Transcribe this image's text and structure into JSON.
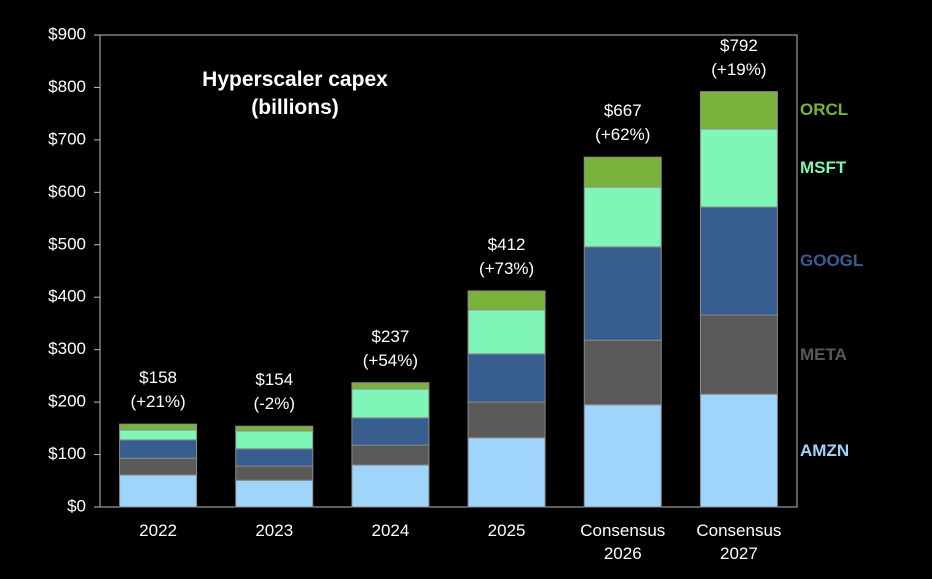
{
  "chart_data": {
    "type": "stacked_bar",
    "title": "Hyperscaler capex",
    "subtitle": "(billions)",
    "categories": [
      "2022",
      "2023",
      "2024",
      "2025",
      "Consensus 2026",
      "Consensus 2027"
    ],
    "series": [
      {
        "name": "AMZN",
        "color": "#9fd5fb",
        "values": [
          61,
          51,
          80,
          132,
          195,
          215
        ]
      },
      {
        "name": "META",
        "color": "#595959",
        "values": [
          32,
          27,
          38,
          68,
          123,
          151
        ]
      },
      {
        "name": "GOOGL",
        "color": "#375e8f",
        "values": [
          35,
          33,
          52,
          92,
          178,
          206
        ]
      },
      {
        "name": "MSFT",
        "color": "#7ff5b7",
        "values": [
          19,
          34,
          55,
          84,
          114,
          149
        ]
      },
      {
        "name": "ORCL",
        "color": "#7ab33c",
        "values": [
          11,
          9,
          12,
          36,
          57,
          71
        ]
      }
    ],
    "total_labels": [
      "$158",
      "$154",
      "$237",
      "$412",
      "$667",
      "$792"
    ],
    "growth_labels": [
      "(+21%)",
      "(-2%)",
      "(+54%)",
      "(+73%)",
      "(+62%)",
      "(+19%)"
    ],
    "ylim": [
      0,
      900
    ],
    "yticks": [
      {
        "value": 0,
        "label": "$0"
      },
      {
        "value": 100,
        "label": "$100"
      },
      {
        "value": 200,
        "label": "$200"
      },
      {
        "value": 300,
        "label": "$300"
      },
      {
        "value": 400,
        "label": "$400"
      },
      {
        "value": 500,
        "label": "$500"
      },
      {
        "value": 600,
        "label": "$600"
      },
      {
        "value": 700,
        "label": "$700"
      },
      {
        "value": 800,
        "label": "$800"
      },
      {
        "value": 900,
        "label": "$900"
      }
    ]
  }
}
